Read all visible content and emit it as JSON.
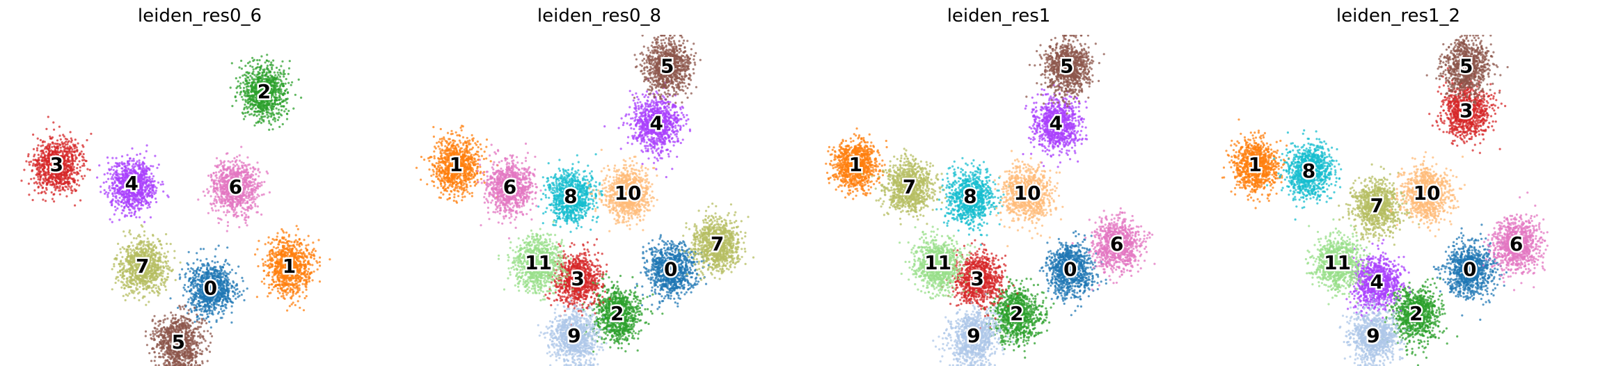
{
  "chart_data": [
    {
      "type": "scatter",
      "title": "leiden_res0_6",
      "clusters": [
        {
          "label": "0",
          "color": "#1f77b4",
          "x": 0.53,
          "y": 0.22
        },
        {
          "label": "1",
          "color": "#ff7f0e",
          "x": 0.75,
          "y": 0.29
        },
        {
          "label": "2",
          "color": "#2ca02c",
          "x": 0.68,
          "y": 0.84
        },
        {
          "label": "3",
          "color": "#d62728",
          "x": 0.1,
          "y": 0.61
        },
        {
          "label": "4",
          "color": "#aa40fc",
          "x": 0.31,
          "y": 0.55
        },
        {
          "label": "5",
          "color": "#8c564b",
          "x": 0.44,
          "y": 0.05
        },
        {
          "label": "6",
          "color": "#e377c2",
          "x": 0.6,
          "y": 0.54
        },
        {
          "label": "7",
          "color": "#b5bd61",
          "x": 0.34,
          "y": 0.29
        }
      ]
    },
    {
      "type": "scatter",
      "title": "leiden_res0_8",
      "clusters": [
        {
          "label": "0",
          "color": "#1f77b4",
          "x": 0.7,
          "y": 0.28
        },
        {
          "label": "1",
          "color": "#ff7f0e",
          "x": 0.1,
          "y": 0.61
        },
        {
          "label": "2",
          "color": "#2ca02c",
          "x": 0.55,
          "y": 0.14
        },
        {
          "label": "3",
          "color": "#d62728",
          "x": 0.44,
          "y": 0.25
        },
        {
          "label": "4",
          "color": "#aa40fc",
          "x": 0.66,
          "y": 0.74
        },
        {
          "label": "5",
          "color": "#8c564b",
          "x": 0.69,
          "y": 0.92
        },
        {
          "label": "6",
          "color": "#e377c2",
          "x": 0.25,
          "y": 0.54
        },
        {
          "label": "7",
          "color": "#b5bd61",
          "x": 0.83,
          "y": 0.36
        },
        {
          "label": "8",
          "color": "#17becf",
          "x": 0.42,
          "y": 0.51
        },
        {
          "label": "9",
          "color": "#aec7e8",
          "x": 0.43,
          "y": 0.07
        },
        {
          "label": "10",
          "color": "#ffbb78",
          "x": 0.58,
          "y": 0.52
        },
        {
          "label": "11",
          "color": "#98df8a",
          "x": 0.33,
          "y": 0.3
        }
      ]
    },
    {
      "type": "scatter",
      "title": "leiden_res1",
      "clusters": [
        {
          "label": "0",
          "color": "#1f77b4",
          "x": 0.7,
          "y": 0.28
        },
        {
          "label": "1",
          "color": "#ff7f0e",
          "x": 0.1,
          "y": 0.61
        },
        {
          "label": "2",
          "color": "#2ca02c",
          "x": 0.55,
          "y": 0.14
        },
        {
          "label": "3",
          "color": "#d62728",
          "x": 0.44,
          "y": 0.25
        },
        {
          "label": "4",
          "color": "#aa40fc",
          "x": 0.66,
          "y": 0.74
        },
        {
          "label": "5",
          "color": "#8c564b",
          "x": 0.69,
          "y": 0.92
        },
        {
          "label": "6",
          "color": "#e377c2",
          "x": 0.83,
          "y": 0.36
        },
        {
          "label": "7",
          "color": "#b5bd61",
          "x": 0.25,
          "y": 0.54
        },
        {
          "label": "8",
          "color": "#17becf",
          "x": 0.42,
          "y": 0.51
        },
        {
          "label": "9",
          "color": "#aec7e8",
          "x": 0.43,
          "y": 0.07
        },
        {
          "label": "10",
          "color": "#ffbb78",
          "x": 0.58,
          "y": 0.52
        },
        {
          "label": "11",
          "color": "#98df8a",
          "x": 0.33,
          "y": 0.3
        }
      ]
    },
    {
      "type": "scatter",
      "title": "leiden_res1_2",
      "clusters": [
        {
          "label": "0",
          "color": "#1f77b4",
          "x": 0.7,
          "y": 0.28
        },
        {
          "label": "1",
          "color": "#ff7f0e",
          "x": 0.1,
          "y": 0.61
        },
        {
          "label": "2",
          "color": "#2ca02c",
          "x": 0.55,
          "y": 0.14
        },
        {
          "label": "3",
          "color": "#d62728",
          "x": 0.69,
          "y": 0.78
        },
        {
          "label": "4",
          "color": "#aa40fc",
          "x": 0.44,
          "y": 0.24
        },
        {
          "label": "5",
          "color": "#8c564b",
          "x": 0.69,
          "y": 0.92
        },
        {
          "label": "6",
          "color": "#e377c2",
          "x": 0.83,
          "y": 0.36
        },
        {
          "label": "7",
          "color": "#b5bd61",
          "x": 0.44,
          "y": 0.48
        },
        {
          "label": "8",
          "color": "#17becf",
          "x": 0.25,
          "y": 0.59
        },
        {
          "label": "9",
          "color": "#aec7e8",
          "x": 0.43,
          "y": 0.07
        },
        {
          "label": "10",
          "color": "#ffbb78",
          "x": 0.58,
          "y": 0.52
        },
        {
          "label": "11",
          "color": "#98df8a",
          "x": 0.33,
          "y": 0.3
        }
      ]
    }
  ]
}
